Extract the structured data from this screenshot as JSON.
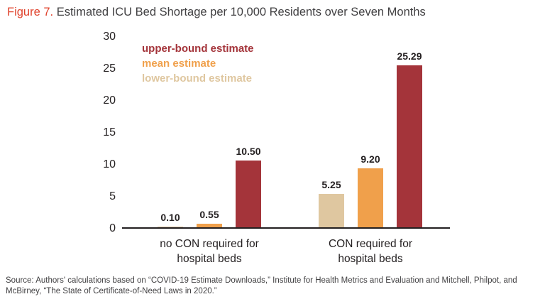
{
  "header": {
    "figure_label": "Figure 7.",
    "title": "Estimated ICU Bed Shortage per 10,000 Residents over Seven Months"
  },
  "legend": {
    "items": [
      {
        "label": "upper-bound estimate",
        "color": "#a4343a"
      },
      {
        "label": "mean estimate",
        "color": "#f0a04b"
      },
      {
        "label": "lower-bound estimate",
        "color": "#dfc7a0"
      }
    ]
  },
  "chart_data": {
    "type": "bar",
    "title": "Estimated ICU Bed Shortage per 10,000 Residents over Seven Months",
    "categories": [
      "no CON required for\nhospital beds",
      "CON required for\nhospital beds"
    ],
    "series": [
      {
        "name": "lower-bound estimate",
        "color": "#dfc7a0",
        "values": [
          0.1,
          5.25
        ],
        "labels": [
          "0.10",
          "5.25"
        ]
      },
      {
        "name": "mean estimate",
        "color": "#f0a04b",
        "values": [
          0.55,
          9.2
        ],
        "labels": [
          "0.55",
          "9.20"
        ]
      },
      {
        "name": "upper-bound estimate",
        "color": "#a4343a",
        "values": [
          10.5,
          25.29
        ],
        "labels": [
          "10.50",
          "25.29"
        ]
      }
    ],
    "ylim": [
      0,
      30
    ],
    "yticks": [
      0,
      5,
      10,
      15,
      20,
      25,
      30
    ],
    "xlabel": "",
    "ylabel": "",
    "grid": false,
    "legend_position": "top-left"
  },
  "footer": {
    "source": "Source: Authors' calculations based on “COVID-19 Estimate Downloads,” Institute for Health Metrics and Evaluation and Mitchell, Philpot, and McBirney, “The State of Certificate-of-Need Laws in 2020.”"
  }
}
